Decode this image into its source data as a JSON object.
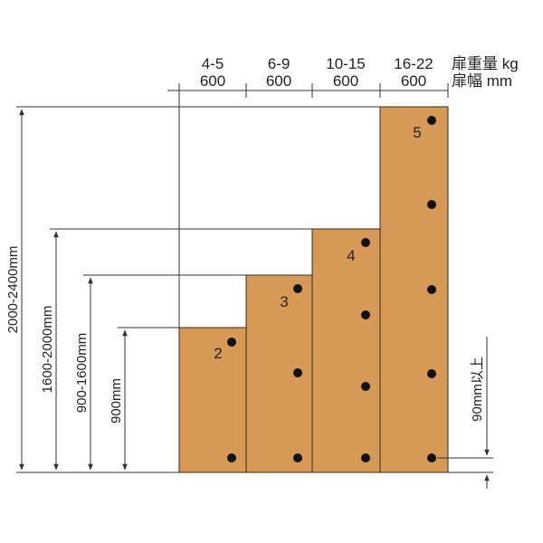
{
  "colors": {
    "panel": "#d79a56",
    "panel_stroke": "#3a2a1a",
    "hole": "#111111",
    "line": "#333333"
  },
  "header": {
    "columns": [
      {
        "weight": "4-5",
        "width": "600"
      },
      {
        "weight": "6-9",
        "width": "600"
      },
      {
        "weight": "10-15",
        "width": "600"
      },
      {
        "weight": "16-22",
        "width": "600"
      }
    ],
    "weight_label": "扉重量 kg",
    "width_label": "扉幅  mm"
  },
  "height_labels": [
    "900mm",
    "900-1600mm",
    "1600-2000mm",
    "2000-2400mm"
  ],
  "hinge_counts": [
    "2",
    "3",
    "4",
    "5"
  ],
  "clearance_label": "90mm以上"
}
